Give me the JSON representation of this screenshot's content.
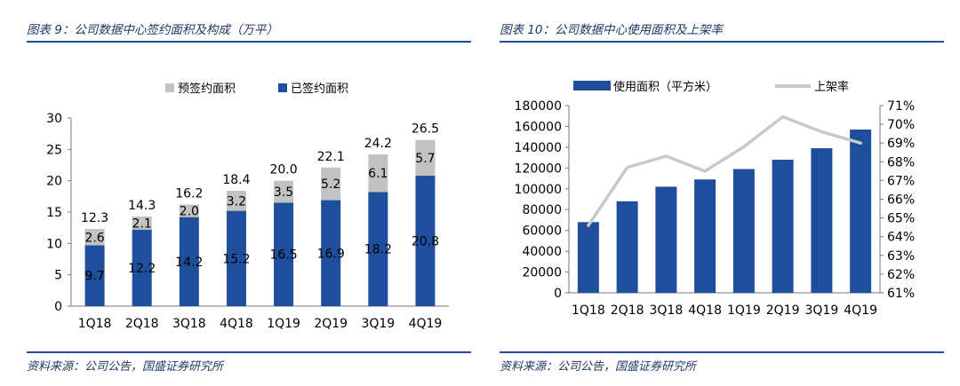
{
  "left": {
    "figure_title": "图表 9：公司数据中心签约面积及构成（万平）",
    "source": "资料来源：公司公告，国盛证券研究所"
  },
  "right": {
    "figure_title": "图表 10：公司数据中心使用面积及上架率",
    "source": "资料来源：公司公告，国盛证券研究所"
  },
  "colors": {
    "navy": "#1f4e9c",
    "gray": "#c2c2c2",
    "rule": "#1f4e9c",
    "title": "#1f3864"
  },
  "chart_data": [
    {
      "type": "bar",
      "stacked": true,
      "title": "公司数据中心签约面积及构成（万平）",
      "categories": [
        "1Q18",
        "2Q18",
        "3Q18",
        "4Q18",
        "1Q19",
        "2Q19",
        "3Q19",
        "4Q19"
      ],
      "series": [
        {
          "name": "已签约面积",
          "values": [
            9.7,
            12.2,
            14.2,
            15.2,
            16.5,
            16.9,
            18.2,
            20.8
          ],
          "labels": [
            "9.7",
            "12.2",
            "14.2",
            "15.2",
            "16.5",
            "16.9",
            "18.2",
            "20.8"
          ]
        },
        {
          "name": "预签约面积",
          "values": [
            2.6,
            2.1,
            2.0,
            3.2,
            3.5,
            5.2,
            6.1,
            5.7
          ],
          "labels": [
            "2.6",
            "2.1",
            "2.0",
            "3.2",
            "3.5",
            "5.2",
            "6.1",
            "5.7"
          ]
        }
      ],
      "totals": [
        12.3,
        14.3,
        16.2,
        18.4,
        20.0,
        22.1,
        24.2,
        26.5
      ],
      "total_labels": [
        "12.3",
        "14.3",
        "16.2",
        "18.4",
        "20.0",
        "22.1",
        "24.2",
        "26.5"
      ],
      "legend_order": [
        "预签约面积",
        "已签约面积"
      ],
      "ylim": [
        0,
        30
      ],
      "yticks": [
        "0",
        "5",
        "10",
        "15",
        "20",
        "25",
        "30"
      ],
      "legend_position": "top-right"
    },
    {
      "type": "bar+line",
      "title": "公司数据中心使用面积及上架率",
      "categories": [
        "1Q18",
        "2Q18",
        "3Q18",
        "4Q18",
        "1Q19",
        "2Q19",
        "3Q19",
        "4Q19"
      ],
      "series": [
        {
          "name": "使用面积（平方米）",
          "axis": "left",
          "kind": "bar",
          "values": [
            68000,
            88000,
            102000,
            109000,
            119000,
            128000,
            139000,
            157000
          ]
        },
        {
          "name": "上架率",
          "axis": "right",
          "kind": "line",
          "values": [
            64.6,
            67.7,
            68.3,
            67.5,
            68.8,
            70.4,
            69.6,
            69.0
          ]
        }
      ],
      "ylim_left": [
        0,
        180000
      ],
      "yticks_left": [
        "0",
        "20000",
        "40000",
        "60000",
        "80000",
        "100000",
        "120000",
        "140000",
        "160000",
        "180000"
      ],
      "ylim_right": [
        61,
        71
      ],
      "yticks_right": [
        "61%",
        "62%",
        "63%",
        "64%",
        "65%",
        "66%",
        "67%",
        "68%",
        "69%",
        "70%",
        "71%"
      ],
      "legend_position": "top"
    }
  ]
}
